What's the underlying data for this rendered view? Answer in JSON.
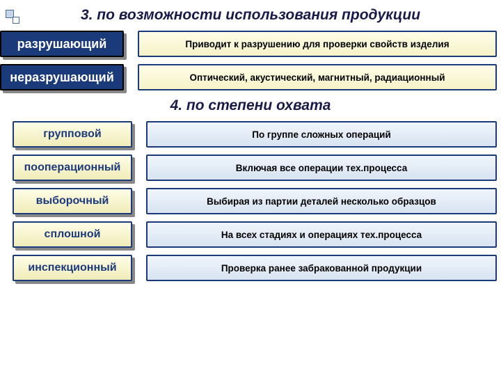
{
  "headings": {
    "h3": "3. по возможности использования продукции",
    "h4": "4. по степени охвата"
  },
  "section3": {
    "label_width": 178,
    "label_fontsize": 18,
    "label_color": "#ffffff",
    "label_bg": "#1a3a7a",
    "label_border": "#000000",
    "desc_bg_top": "#fffde8",
    "desc_bg_bottom": "#f5f2c8",
    "desc_border": "#1a3a7a",
    "rows": [
      {
        "label": "разрушающий",
        "desc": "Приводит к разрушению для проверки свойств изделия"
      },
      {
        "label": "неразрушающий",
        "desc": "Оптический, акустический, магнитный, радиационный"
      }
    ]
  },
  "section4": {
    "label_width": 172,
    "label_margin_left": 18,
    "label_fontsize": 16,
    "label_color": "#1a3a7a",
    "label_bg_top": "#fffde8",
    "label_bg_bottom": "#f0ecb8",
    "label_border": "#1a3a7a",
    "desc_bg_top": "#f0f5fb",
    "desc_bg_bottom": "#d8e4f2",
    "desc_border": "#1a3a7a",
    "rows": [
      {
        "label": "групповой",
        "desc": "По группе сложных операций"
      },
      {
        "label": "пооперационный",
        "desc": "Включая все операции тех.процесса"
      },
      {
        "label": "выборочный",
        "desc": "Выбирая из партии деталей несколько образцов"
      },
      {
        "label": "сплошной",
        "desc": "На всех стадиях и операциях тех.процесса"
      },
      {
        "label": "инспекционный",
        "desc": "Проверка ранее забракованной продукции"
      }
    ]
  }
}
